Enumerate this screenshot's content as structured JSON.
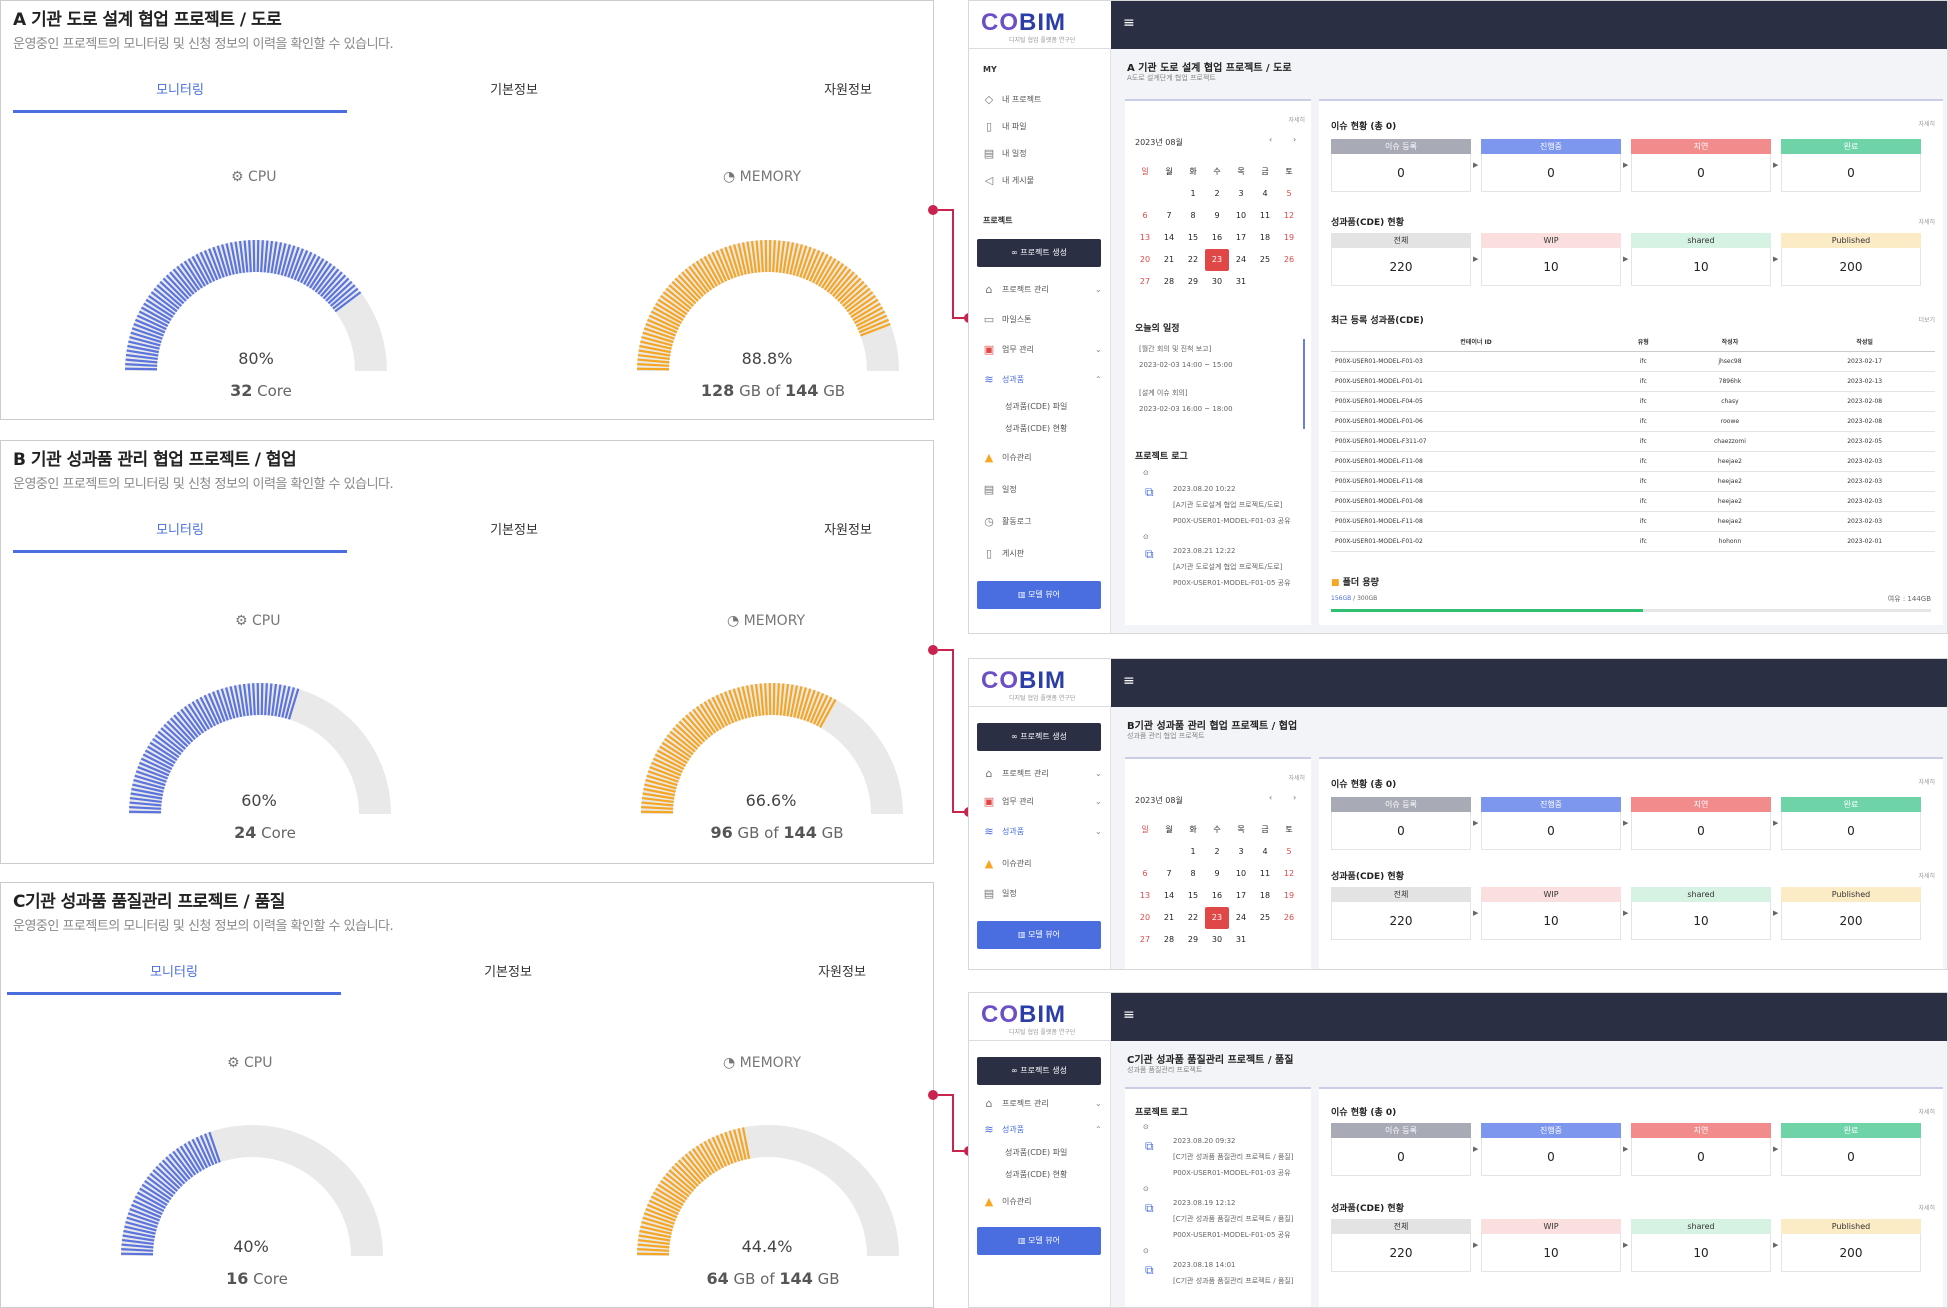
{
  "projects": [
    {
      "title": "A 기관 도로 설계 협업 프로젝트 / 도로",
      "subtitle": "운영중인 프로젝트의 모니터링 및 신청 정보의 이력을 확인할 수 있습니다.",
      "tabs": [
        "모니터링",
        "기본정보",
        "자원정보"
      ],
      "cpu": {
        "label": "CPU",
        "percent": "80%",
        "core_value": "32",
        "core_unit": "Core",
        "fraction": 0.8
      },
      "memory": {
        "label": "MEMORY",
        "percent": "88.8%",
        "used": "128",
        "unit": "GB of",
        "total": "144",
        "total_unit": "GB",
        "fraction": 0.888
      }
    },
    {
      "title": "B 기관 성과품 관리 협업 프로젝트 / 협업",
      "subtitle": "운영중인 프로젝트의 모니터링 및 신청 정보의 이력을 확인할 수 있습니다.",
      "tabs": [
        "모니터링",
        "기본정보",
        "자원정보"
      ],
      "cpu": {
        "label": "CPU",
        "percent": "60%",
        "core_value": "24",
        "core_unit": "Core",
        "fraction": 0.6
      },
      "memory": {
        "label": "MEMORY",
        "percent": "66.6%",
        "used": "96",
        "unit": "GB of",
        "total": "144",
        "total_unit": "GB",
        "fraction": 0.666
      }
    },
    {
      "title": "C기관 성과품 품질관리 프로젝트 / 품질",
      "subtitle": "운영중인 프로젝트의 모니터링 및 신청 정보의 이력을 확인할 수 있습니다.",
      "tabs": [
        "모니터링",
        "기본정보",
        "자원정보"
      ],
      "cpu": {
        "label": "CPU",
        "percent": "40%",
        "core_value": "16",
        "core_unit": "Core",
        "fraction": 0.4
      },
      "memory": {
        "label": "MEMORY",
        "percent": "44.4%",
        "used": "64",
        "unit": "GB of",
        "total": "144",
        "total_unit": "GB",
        "fraction": 0.444
      }
    }
  ],
  "colors": {
    "cpu": "#5b74de",
    "memory": "#f5a623",
    "track": "#e9e9e9",
    "accent": "#4a6ee0",
    "connector": "#c8244f",
    "dark": "#2a2f44"
  },
  "app": {
    "logo_main": "BIM",
    "logo_prefix": "CO",
    "logo_sub": "디지털 협업 플랫폼 연구단",
    "menu_icon": "≡"
  },
  "panel_a": {
    "sidebar": {
      "my_label": "MY",
      "my_items": [
        "내 프로젝트",
        "내 파일",
        "내 일정",
        "내 게시물"
      ],
      "project_label": "프로젝트",
      "create_button": "∞  프로젝트 생성",
      "items": [
        "프로젝트 관리",
        "마일스톤",
        "업무 관리",
        "성과품",
        "성과품(CDE) 파일",
        "성과품(CDE) 현황",
        "이슈관리",
        "일정",
        "활동로그",
        "게시판"
      ],
      "viewer_button": "모델 뷰어"
    },
    "title": "A 기관 도로 설계 협업 프로젝트 / 도로",
    "subtitle": "A도로 설계단계 협업 프로젝트",
    "more": "자세히",
    "calendar": {
      "month": "2023년 08월",
      "weekdays": [
        "일",
        "월",
        "화",
        "수",
        "목",
        "금",
        "토"
      ]
    },
    "today_label": "오늘의 일정",
    "schedule": [
      "[월간 회의 및 진척 보고]",
      "2023-02-03 14:00 ~ 15:00",
      "[설계 이슈 회의]",
      "2023-02-03 16:00 ~ 18:00"
    ],
    "log_label": "프로젝트 로그",
    "logs": [
      {
        "time": "2023.08.20 10:22",
        "project": "[A기관 도로설계 협업 프로젝트/도로]",
        "file": "P00X-USER01-MODEL-F01-03 공유"
      },
      {
        "time": "2023.08.21 12:22",
        "project": "[A기관 도로설계 협업 프로젝트/도로]",
        "file": "P00X-USER01-MODEL-F01-05 공유"
      }
    ],
    "issue_label": "이슈 현황 (총 0)",
    "issues": [
      {
        "label": "이슈 등록",
        "value": "0",
        "color": "#a8abb5"
      },
      {
        "label": "진행중",
        "value": "0",
        "color": "#7d97ef"
      },
      {
        "label": "지연",
        "value": "0",
        "color": "#f28b8b"
      },
      {
        "label": "완료",
        "value": "0",
        "color": "#6fd3a8"
      }
    ],
    "cde_label": "성과품(CDE) 현황",
    "cde": [
      {
        "label": "전체",
        "value": "220",
        "color": "#e3e3e3"
      },
      {
        "label": "WIP",
        "value": "10",
        "color": "#fbdede"
      },
      {
        "label": "shared",
        "value": "10",
        "color": "#d6f2e3"
      },
      {
        "label": "Published",
        "value": "200",
        "color": "#fbecc6"
      }
    ],
    "recent_label": "최근 등록 성과품(CDE)",
    "recent_more": "더보기",
    "table_headers": [
      "컨테이너 ID",
      "유형",
      "작성자",
      "작성일"
    ],
    "table_rows": [
      [
        "P00X-USER01-MODEL-F01-03",
        "ifc",
        "jhsec98",
        "2023-02-17"
      ],
      [
        "P00X-USER01-MODEL-F01-01",
        "ifc",
        "7896hk",
        "2023-02-13"
      ],
      [
        "P00X-USER01-MODEL-F04-05",
        "ifc",
        "chasy",
        "2023-02-08"
      ],
      [
        "P00X-USER01-MODEL-F01-06",
        "ifc",
        "roowe",
        "2023-02-08"
      ],
      [
        "P00X-USER01-MODEL-F311-07",
        "ifc",
        "chaezzomi",
        "2023-02-05"
      ],
      [
        "P00X-USER01-MODEL-F11-08",
        "ifc",
        "heejae2",
        "2023-02-03"
      ],
      [
        "P00X-USER01-MODEL-F11-08",
        "ifc",
        "heejae2",
        "2023-02-03"
      ],
      [
        "P00X-USER01-MODEL-F01-08",
        "ifc",
        "heejae2",
        "2023-02-03"
      ],
      [
        "P00X-USER01-MODEL-F11-08",
        "ifc",
        "heejae2",
        "2023-02-03"
      ],
      [
        "P00X-USER01-MODEL-F01-02",
        "ifc",
        "hohonn",
        "2023-02-01"
      ]
    ],
    "folder_label": "폴더 용량",
    "folder_used": "156GB",
    "folder_total": "300GB",
    "folder_free": "여유 : 144GB",
    "folder_fraction": 0.52
  },
  "panel_b": {
    "create_button": "∞  프로젝트 생성",
    "items": [
      "프로젝트 관리",
      "업무 관리",
      "성과품",
      "이슈관리",
      "일정"
    ],
    "viewer_button": "모델 뷰어",
    "title": "B기관 성과품 관리 협업 프로젝트 / 협업",
    "subtitle": "성과품 관리 협업 프로젝트",
    "more": "자세히",
    "calendar": {
      "month": "2023년 08월"
    },
    "issue_label": "이슈 현황 (총 0)",
    "cde_label": "성과품(CDE) 현황"
  },
  "panel_c": {
    "create_button": "∞  프로젝트 생성",
    "items": [
      "프로젝트 관리",
      "성과품",
      "성과품(CDE) 파일",
      "성과품(CDE) 현황",
      "이슈관리"
    ],
    "viewer_button": "모델 뷰어",
    "title": "C기관 성과품 품질관리 프로젝트 / 품질",
    "subtitle": "성과품 품질관리 프로젝트",
    "more": "자세히",
    "log_label": "프로젝트 로그",
    "logs": [
      {
        "time": "2023.08.20 09:32",
        "project": "[C기관 성과품 품질관리 프로젝트 / 품질]",
        "file": "P00X-USER01-MODEL-F01-03 공유"
      },
      {
        "time": "2023.08.19 12:12",
        "project": "[C기관 성과품 품질관리 프로젝트 / 품질]",
        "file": "P00X-USER01-MODEL-F01-05 공유"
      },
      {
        "time": "2023.08.18 14:01",
        "project": "[C기관 성과품 품질관리 프로젝트 / 품질]",
        "file": ""
      }
    ],
    "issue_label": "이슈 현황 (총 0)",
    "cde_label": "성과품(CDE) 현황"
  },
  "calendar_days": [
    [
      "",
      "",
      "1",
      "2",
      "3",
      "4",
      "5"
    ],
    [
      "6",
      "7",
      "8",
      "9",
      "10",
      "11",
      "12"
    ],
    [
      "13",
      "14",
      "15",
      "16",
      "17",
      "18",
      "19"
    ],
    [
      "20",
      "21",
      "22",
      "23",
      "24",
      "25",
      "26"
    ],
    [
      "27",
      "28",
      "29",
      "30",
      "31",
      "",
      ""
    ]
  ],
  "calendar_today": "23"
}
